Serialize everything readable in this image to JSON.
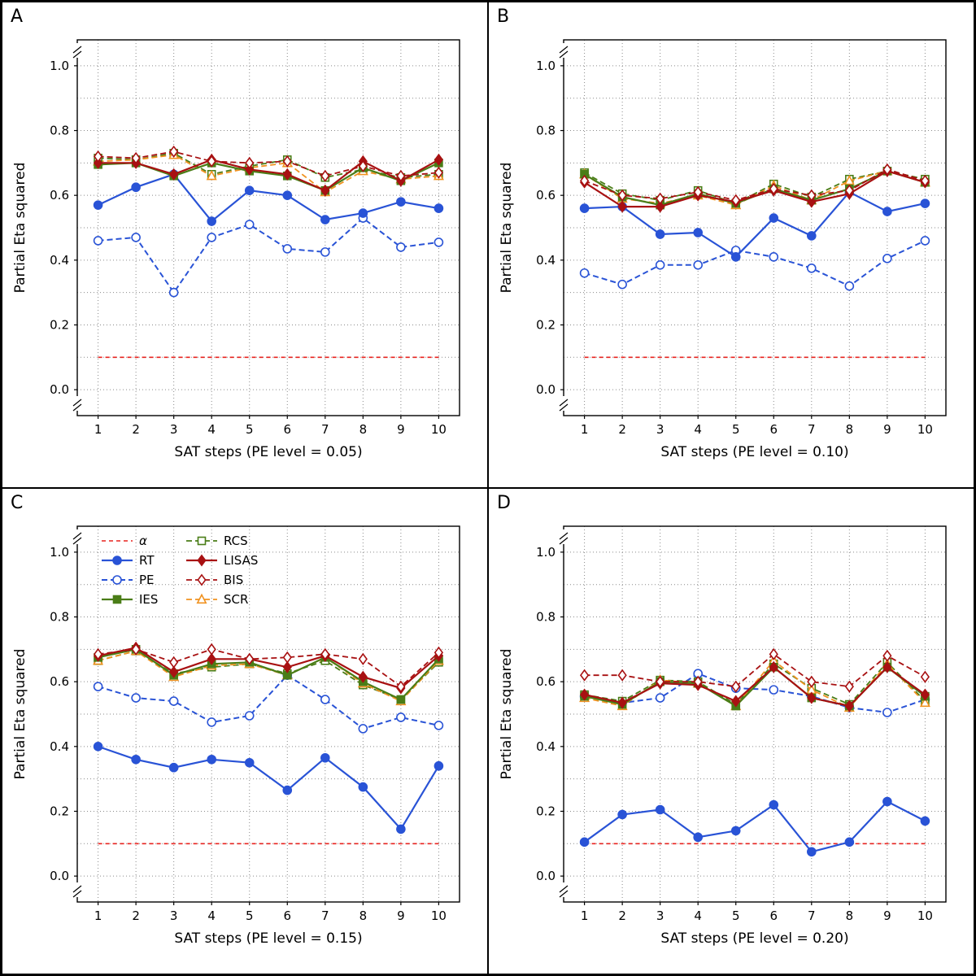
{
  "axes": {
    "ylabel": "Partial Eta squared",
    "xlim": [
      0.45,
      10.55
    ],
    "ylim": [
      -0.08,
      1.08
    ],
    "xticks": [
      1,
      2,
      3,
      4,
      5,
      6,
      7,
      8,
      9,
      10
    ],
    "ymajor": [
      0.0,
      0.2,
      0.4,
      0.6,
      0.8,
      1.0
    ],
    "grid_step": 0.1
  },
  "styles": {
    "grid_color": "#8a8a8a",
    "axis_color": "#000000",
    "background": "#ffffff",
    "text_color": "#000000"
  },
  "series_defs": [
    {
      "id": "alpha",
      "label": "α",
      "color": "#e8231f",
      "dash": "5,4",
      "marker": "none",
      "filled": false,
      "width": 1.6
    },
    {
      "id": "RT",
      "label": "RT",
      "color": "#2953d6",
      "dash": "",
      "marker": "circle",
      "filled": true,
      "width": 2.2
    },
    {
      "id": "PE",
      "label": "PE",
      "color": "#2953d6",
      "dash": "7,4",
      "marker": "circle",
      "filled": false,
      "width": 2
    },
    {
      "id": "IES",
      "label": "IES",
      "color": "#4a7d17",
      "dash": "",
      "marker": "square",
      "filled": true,
      "width": 2.2
    },
    {
      "id": "RCS",
      "label": "RCS",
      "color": "#4a7d17",
      "dash": "7,4",
      "marker": "square",
      "filled": false,
      "width": 1.8
    },
    {
      "id": "LISAS",
      "label": "LISAS",
      "color": "#a81112",
      "dash": "",
      "marker": "diamond",
      "filled": true,
      "width": 2.2
    },
    {
      "id": "BIS",
      "label": "BIS",
      "color": "#a81112",
      "dash": "7,4",
      "marker": "diamond",
      "filled": false,
      "width": 1.8
    },
    {
      "id": "SCR",
      "label": "SCR",
      "color": "#f09220",
      "dash": "7,4",
      "marker": "triangle",
      "filled": false,
      "width": 1.8
    }
  ],
  "legend": {
    "panel": "C",
    "columns": [
      [
        "alpha",
        "RT",
        "PE",
        "IES"
      ],
      [
        "RCS",
        "LISAS",
        "BIS",
        "SCR"
      ]
    ]
  },
  "chart_data": [
    {
      "panel": "A",
      "type": "line",
      "xlabel": "SAT steps (PE level = 0.05)",
      "x": [
        1,
        2,
        3,
        4,
        5,
        6,
        7,
        8,
        9,
        10
      ],
      "series": [
        {
          "id": "alpha",
          "values": [
            0.1,
            0.1,
            0.1,
            0.1,
            0.1,
            0.1,
            0.1,
            0.1,
            0.1,
            0.1
          ]
        },
        {
          "id": "PE",
          "values": [
            0.46,
            0.47,
            0.3,
            0.47,
            0.51,
            0.435,
            0.425,
            0.53,
            0.44,
            0.455
          ]
        },
        {
          "id": "RT",
          "values": [
            0.57,
            0.625,
            0.665,
            0.52,
            0.615,
            0.6,
            0.525,
            0.545,
            0.58,
            0.56
          ]
        },
        {
          "id": "RCS",
          "values": [
            0.715,
            0.71,
            0.73,
            0.665,
            0.69,
            0.71,
            0.655,
            0.68,
            0.655,
            0.665
          ]
        },
        {
          "id": "SCR",
          "values": [
            0.705,
            0.71,
            0.725,
            0.66,
            0.685,
            0.7,
            0.61,
            0.675,
            0.65,
            0.66
          ]
        },
        {
          "id": "IES",
          "values": [
            0.695,
            0.7,
            0.66,
            0.7,
            0.675,
            0.66,
            0.615,
            0.685,
            0.645,
            0.7
          ]
        },
        {
          "id": "LISAS",
          "values": [
            0.7,
            0.7,
            0.665,
            0.71,
            0.68,
            0.665,
            0.615,
            0.705,
            0.645,
            0.71
          ]
        },
        {
          "id": "BIS",
          "values": [
            0.72,
            0.715,
            0.735,
            0.705,
            0.7,
            0.705,
            0.66,
            0.69,
            0.66,
            0.67
          ]
        }
      ]
    },
    {
      "panel": "B",
      "type": "line",
      "xlabel": "SAT steps (PE level = 0.10)",
      "x": [
        1,
        2,
        3,
        4,
        5,
        6,
        7,
        8,
        9,
        10
      ],
      "series": [
        {
          "id": "alpha",
          "values": [
            0.1,
            0.1,
            0.1,
            0.1,
            0.1,
            0.1,
            0.1,
            0.1,
            0.1,
            0.1
          ]
        },
        {
          "id": "PE",
          "values": [
            0.36,
            0.325,
            0.385,
            0.385,
            0.43,
            0.41,
            0.375,
            0.32,
            0.405,
            0.46
          ]
        },
        {
          "id": "RT",
          "values": [
            0.56,
            0.565,
            0.48,
            0.485,
            0.41,
            0.53,
            0.475,
            0.61,
            0.55,
            0.575
          ]
        },
        {
          "id": "RCS",
          "values": [
            0.67,
            0.605,
            0.585,
            0.615,
            0.575,
            0.635,
            0.595,
            0.65,
            0.675,
            0.65
          ]
        },
        {
          "id": "SCR",
          "values": [
            0.665,
            0.59,
            0.575,
            0.6,
            0.57,
            0.63,
            0.585,
            0.645,
            0.675,
            0.64
          ]
        },
        {
          "id": "IES",
          "values": [
            0.665,
            0.595,
            0.57,
            0.605,
            0.575,
            0.62,
            0.585,
            0.62,
            0.675,
            0.64
          ]
        },
        {
          "id": "LISAS",
          "values": [
            0.64,
            0.565,
            0.565,
            0.6,
            0.58,
            0.615,
            0.58,
            0.605,
            0.675,
            0.64
          ]
        },
        {
          "id": "BIS",
          "values": [
            0.645,
            0.6,
            0.59,
            0.61,
            0.585,
            0.62,
            0.6,
            0.615,
            0.68,
            0.645
          ]
        }
      ]
    },
    {
      "panel": "C",
      "type": "line",
      "xlabel": "SAT steps (PE level = 0.15)",
      "x": [
        1,
        2,
        3,
        4,
        5,
        6,
        7,
        8,
        9,
        10
      ],
      "series": [
        {
          "id": "alpha",
          "values": [
            0.1,
            0.1,
            0.1,
            0.1,
            0.1,
            0.1,
            0.1,
            0.1,
            0.1,
            0.1
          ]
        },
        {
          "id": "PE",
          "values": [
            0.585,
            0.55,
            0.54,
            0.475,
            0.495,
            0.62,
            0.545,
            0.455,
            0.49,
            0.465
          ]
        },
        {
          "id": "RT",
          "values": [
            0.4,
            0.36,
            0.335,
            0.36,
            0.35,
            0.265,
            0.365,
            0.275,
            0.145,
            0.34
          ]
        },
        {
          "id": "RCS",
          "values": [
            0.665,
            0.695,
            0.625,
            0.645,
            0.655,
            0.625,
            0.665,
            0.59,
            0.545,
            0.66
          ]
        },
        {
          "id": "SCR",
          "values": [
            0.665,
            0.695,
            0.615,
            0.65,
            0.655,
            0.62,
            0.675,
            0.595,
            0.54,
            0.665
          ]
        },
        {
          "id": "IES",
          "values": [
            0.675,
            0.7,
            0.62,
            0.655,
            0.66,
            0.62,
            0.675,
            0.6,
            0.545,
            0.67
          ]
        },
        {
          "id": "LISAS",
          "values": [
            0.68,
            0.705,
            0.63,
            0.67,
            0.67,
            0.645,
            0.68,
            0.615,
            0.58,
            0.68
          ]
        },
        {
          "id": "BIS",
          "values": [
            0.685,
            0.7,
            0.66,
            0.7,
            0.67,
            0.675,
            0.685,
            0.67,
            0.585,
            0.69
          ]
        }
      ]
    },
    {
      "panel": "D",
      "type": "line",
      "xlabel": "SAT steps (PE level = 0.20)",
      "x": [
        1,
        2,
        3,
        4,
        5,
        6,
        7,
        8,
        9,
        10
      ],
      "series": [
        {
          "id": "alpha",
          "values": [
            0.1,
            0.1,
            0.1,
            0.1,
            0.1,
            0.1,
            0.1,
            0.1,
            0.1,
            0.1
          ]
        },
        {
          "id": "PE",
          "values": [
            0.555,
            0.535,
            0.55,
            0.625,
            0.58,
            0.575,
            0.555,
            0.52,
            0.505,
            0.545
          ]
        },
        {
          "id": "RT",
          "values": [
            0.105,
            0.19,
            0.205,
            0.12,
            0.14,
            0.22,
            0.075,
            0.105,
            0.23,
            0.17
          ]
        },
        {
          "id": "RCS",
          "values": [
            0.56,
            0.54,
            0.605,
            0.6,
            0.53,
            0.655,
            0.58,
            0.53,
            0.66,
            0.54
          ]
        },
        {
          "id": "SCR",
          "values": [
            0.55,
            0.525,
            0.605,
            0.595,
            0.525,
            0.665,
            0.575,
            0.52,
            0.655,
            0.535
          ]
        },
        {
          "id": "IES",
          "values": [
            0.555,
            0.53,
            0.6,
            0.595,
            0.525,
            0.645,
            0.55,
            0.525,
            0.645,
            0.555
          ]
        },
        {
          "id": "LISAS",
          "values": [
            0.56,
            0.535,
            0.595,
            0.59,
            0.54,
            0.645,
            0.55,
            0.525,
            0.645,
            0.56
          ]
        },
        {
          "id": "BIS",
          "values": [
            0.62,
            0.62,
            0.6,
            0.6,
            0.585,
            0.685,
            0.6,
            0.585,
            0.68,
            0.615
          ]
        }
      ]
    }
  ]
}
